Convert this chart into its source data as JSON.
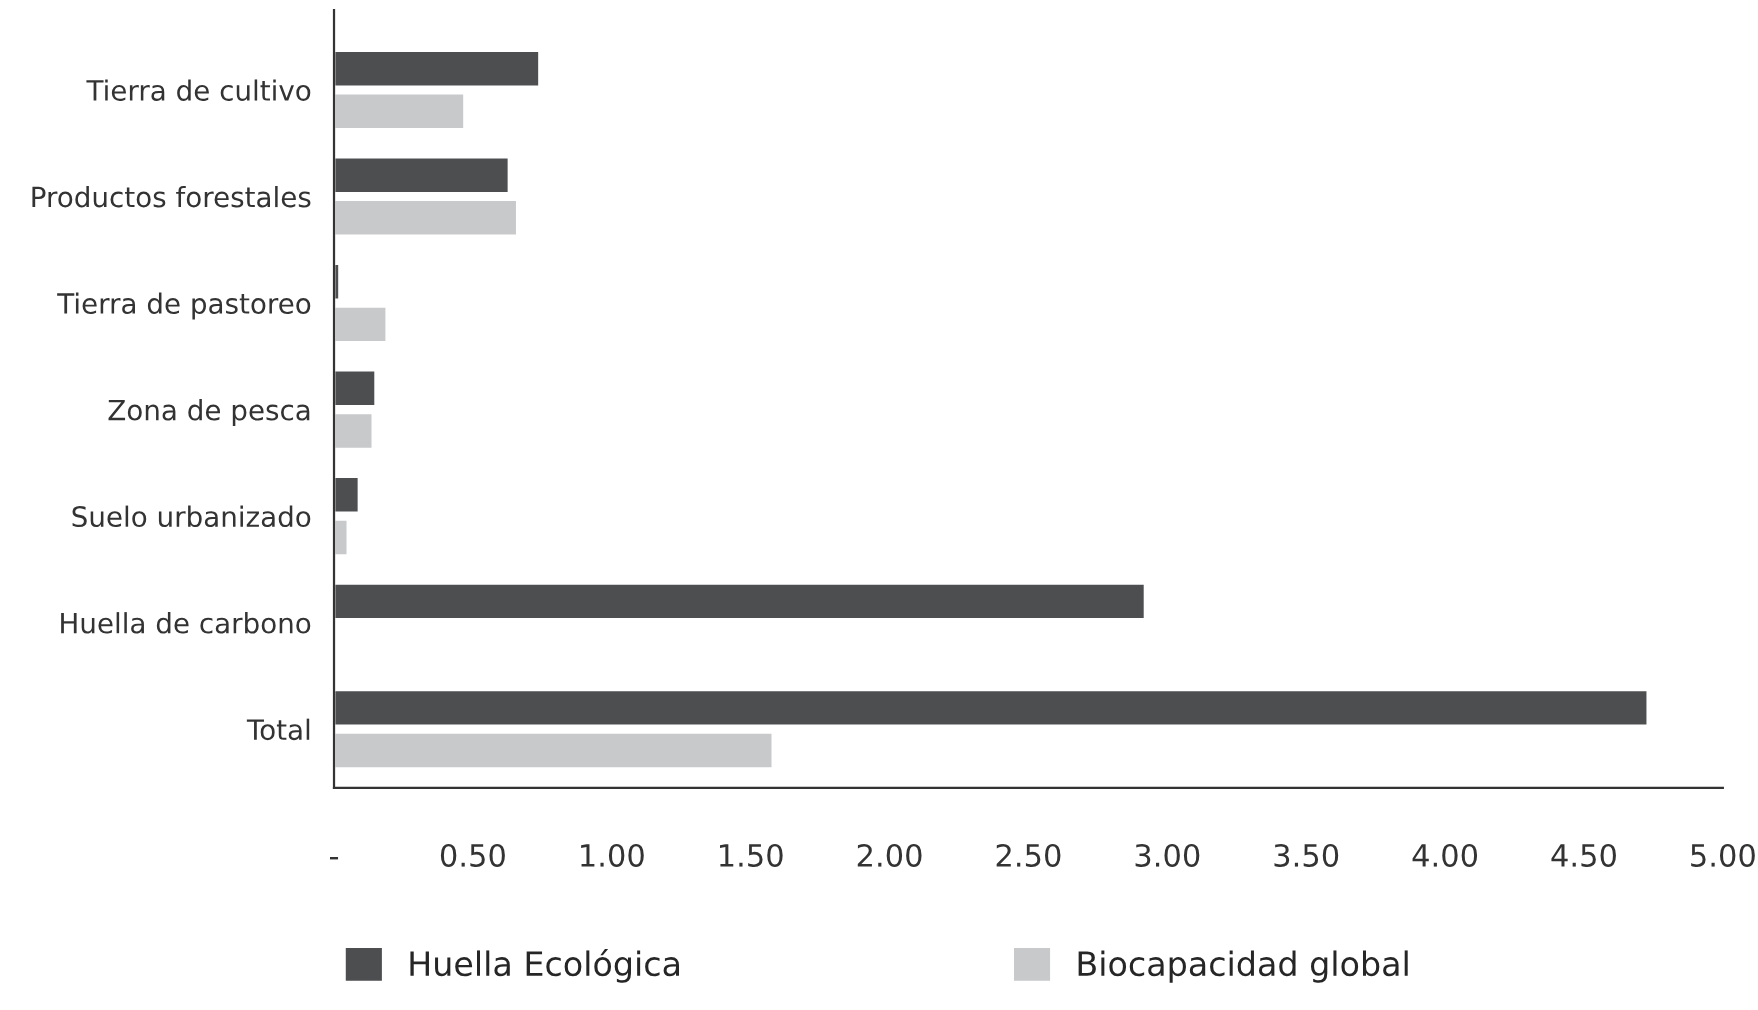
{
  "chart_data": {
    "type": "bar",
    "orientation": "horizontal",
    "categories": [
      "Tierra de cultivo",
      "Productos forestales",
      "Tierra de pastoreo",
      "Zona de pesca",
      "Suelo urbanizado",
      "Huella de carbono",
      "Total"
    ],
    "series": [
      {
        "name": "Huella Ecológica",
        "color": "#4d4e50",
        "values": [
          0.74,
          0.63,
          0.02,
          0.15,
          0.09,
          2.92,
          4.73
        ]
      },
      {
        "name": "Biocapacidad global",
        "color": "#c8c9cb",
        "values": [
          0.47,
          0.66,
          0.19,
          0.14,
          0.05,
          null,
          1.58
        ]
      }
    ],
    "xlim": [
      0,
      5
    ],
    "xticks": [
      {
        "value": 0,
        "label": "-"
      },
      {
        "value": 0.5,
        "label": "0.50"
      },
      {
        "value": 1,
        "label": "1.00"
      },
      {
        "value": 1.5,
        "label": "1.50"
      },
      {
        "value": 2,
        "label": "2.00"
      },
      {
        "value": 2.5,
        "label": "2.50"
      },
      {
        "value": 3,
        "label": "3.00"
      },
      {
        "value": 3.5,
        "label": "3.50"
      },
      {
        "value": 4,
        "label": "4.00"
      },
      {
        "value": 4.5,
        "label": "4.50"
      },
      {
        "value": 5,
        "label": "5.00"
      }
    ],
    "grid": false,
    "legend": "bottom"
  }
}
